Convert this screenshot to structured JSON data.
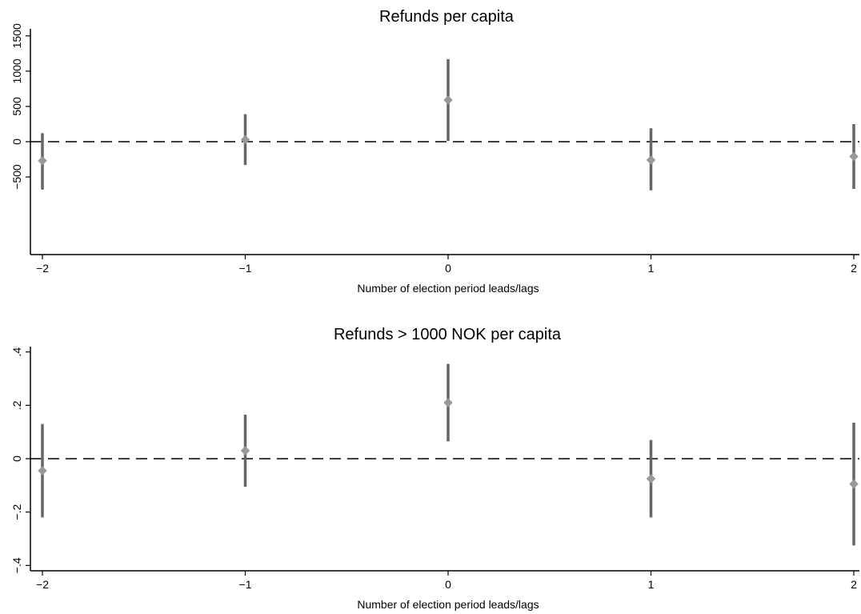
{
  "chart_data": [
    {
      "type": "errorbar",
      "title": "Refunds per capita",
      "xlabel": "Number of election period leads/lags",
      "ylabel": "",
      "x_ticks": [
        "−2",
        "−1",
        "0",
        "1",
        "2"
      ],
      "y_ticks": [
        "−500",
        "0",
        "500",
        "1000",
        "1500"
      ],
      "xlim": [
        -2,
        2
      ],
      "ylim": [
        -1600,
        1600
      ],
      "reference_line": 0,
      "grid": false,
      "points": [
        {
          "x": -2,
          "estimate": -270,
          "ci_low": -680,
          "ci_high": 120
        },
        {
          "x": -1,
          "estimate": 30,
          "ci_low": -330,
          "ci_high": 390
        },
        {
          "x": 0,
          "estimate": 590,
          "ci_low": 10,
          "ci_high": 1170
        },
        {
          "x": 1,
          "estimate": -260,
          "ci_low": -690,
          "ci_high": 190
        },
        {
          "x": 2,
          "estimate": -210,
          "ci_low": -670,
          "ci_high": 250
        }
      ]
    },
    {
      "type": "errorbar",
      "title": "Refunds > 1000 NOK per capita",
      "xlabel": "Number of election period leads/lags",
      "ylabel": "",
      "x_ticks": [
        "−2",
        "−1",
        "0",
        "1",
        "2"
      ],
      "y_ticks": [
        "−.4",
        "−.2",
        "0",
        ".2",
        ".4"
      ],
      "xlim": [
        -2,
        2
      ],
      "ylim": [
        -0.42,
        0.42
      ],
      "reference_line": 0,
      "grid": false,
      "points": [
        {
          "x": -2,
          "estimate": -0.045,
          "ci_low": -0.22,
          "ci_high": 0.13
        },
        {
          "x": -1,
          "estimate": 0.03,
          "ci_low": -0.105,
          "ci_high": 0.165
        },
        {
          "x": 0,
          "estimate": 0.21,
          "ci_low": 0.065,
          "ci_high": 0.355
        },
        {
          "x": 1,
          "estimate": -0.075,
          "ci_low": -0.22,
          "ci_high": 0.07
        },
        {
          "x": 2,
          "estimate": -0.095,
          "ci_low": -0.325,
          "ci_high": 0.135
        }
      ]
    }
  ]
}
